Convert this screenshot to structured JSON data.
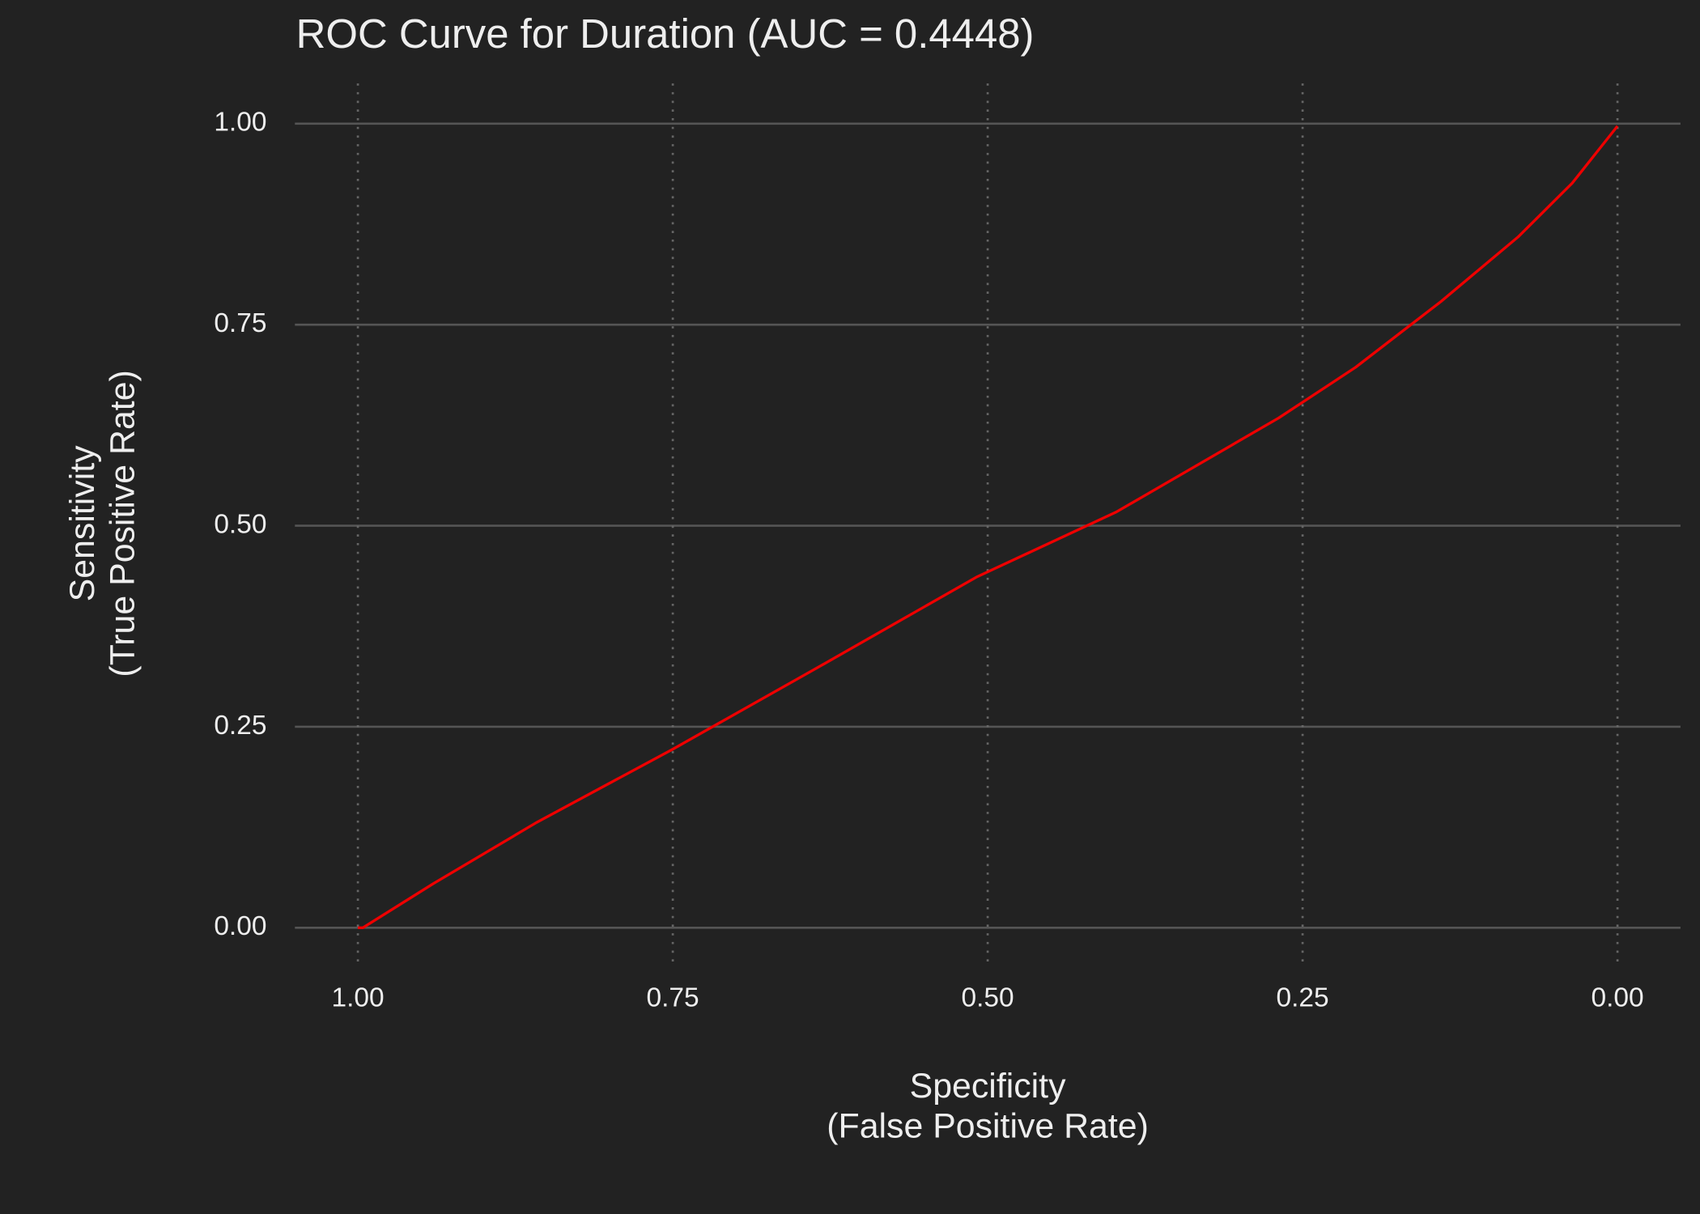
{
  "chart_data": {
    "type": "line",
    "title": "ROC Curve for Duration (AUC = 0.4448)",
    "x_label": [
      "Specificity",
      "(False Positive Rate)"
    ],
    "y_label": [
      "Sensitivity",
      "(True Positive Rate)"
    ],
    "x": [
      1.0,
      0.996,
      0.94,
      0.858,
      0.75,
      0.639,
      0.509,
      0.398,
      0.269,
      0.208,
      0.14,
      0.079,
      0.036,
      0.0
    ],
    "values": [
      0.0,
      0.0,
      0.055,
      0.131,
      0.222,
      0.32,
      0.436,
      0.517,
      0.634,
      0.697,
      0.779,
      0.859,
      0.926,
      0.997
    ],
    "color": "#ee0000",
    "xlim": [
      1.05,
      -0.05
    ],
    "ylim": [
      -0.05,
      1.05
    ],
    "xticks": [
      {
        "value": 1,
        "label": "1.00"
      },
      {
        "value": 0.75,
        "label": "0.75"
      },
      {
        "value": 0.5,
        "label": "0.50"
      },
      {
        "value": 0.25,
        "label": "0.25"
      },
      {
        "value": 0,
        "label": "0.00"
      }
    ],
    "yticks": [
      {
        "value": 0,
        "label": "0.00"
      },
      {
        "value": 0.25,
        "label": "0.25"
      },
      {
        "value": 0.5,
        "label": "0.50"
      },
      {
        "value": 0.75,
        "label": "0.75"
      },
      {
        "value": 1,
        "label": "1.00"
      }
    ],
    "grid": true
  }
}
